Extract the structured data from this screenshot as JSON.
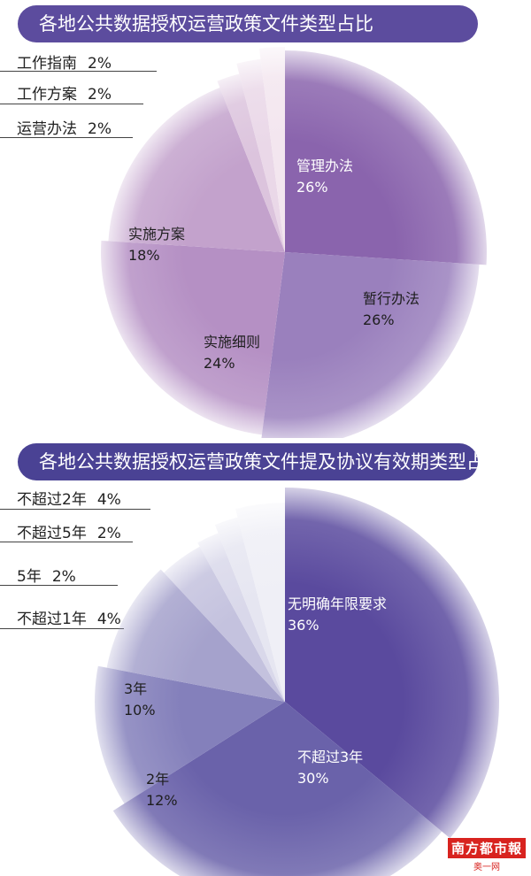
{
  "chart_data": [
    {
      "type": "pie",
      "title": "各地公共数据授权运营政策文件类型占比",
      "slices": [
        {
          "label": "管理办法",
          "pct_text": "26%",
          "value": 26,
          "color": "#8a64ad"
        },
        {
          "label": "暂行办法",
          "pct_text": "26%",
          "value": 26,
          "color": "#9a80bd"
        },
        {
          "label": "实施细则",
          "pct_text": "24%",
          "value": 24,
          "color": "#b590c4"
        },
        {
          "label": "实施方案",
          "pct_text": "18%",
          "value": 18,
          "color": "#c3a2cc"
        },
        {
          "label": "运营办法",
          "pct_text": "2%",
          "value": 2,
          "color": "#dcc4dd"
        },
        {
          "label": "工作方案",
          "pct_text": "2%",
          "value": 2,
          "color": "#ead8e8"
        },
        {
          "label": "工作指南",
          "pct_text": "2%",
          "value": 2,
          "color": "#f3e6ef"
        }
      ]
    },
    {
      "type": "pie",
      "title": "各地公共数据授权运营政策文件提及协议有效期类型占比",
      "slices": [
        {
          "label": "无明确年限要求",
          "pct_text": "36%",
          "value": 36,
          "color": "#5a4a9e"
        },
        {
          "label": "不超过3年",
          "pct_text": "30%",
          "value": 30,
          "color": "#6a62aa"
        },
        {
          "label": "2年",
          "pct_text": "12%",
          "value": 12,
          "color": "#8480bb"
        },
        {
          "label": "3年",
          "pct_text": "10%",
          "value": 10,
          "color": "#a5a2cc"
        },
        {
          "label": "不超过1年",
          "pct_text": "4%",
          "value": 4,
          "color": "#c4c2de"
        },
        {
          "label": "5年",
          "pct_text": "2%",
          "value": 2,
          "color": "#d9d8ea"
        },
        {
          "label": "不超过5年",
          "pct_text": "2%",
          "value": 2,
          "color": "#e6e6f1"
        },
        {
          "label": "不超过2年",
          "pct_text": "4%",
          "value": 4,
          "color": "#efeff6"
        }
      ]
    }
  ],
  "logo": {
    "name": "南方都市報",
    "sub": "奥一网"
  }
}
